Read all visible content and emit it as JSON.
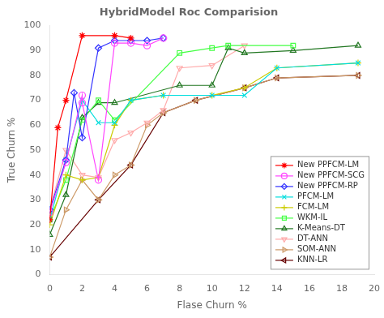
{
  "chart_data": {
    "type": "line",
    "title": "HybridModel Roc Comparision",
    "xlabel": "Flase Churn %",
    "ylabel": "True Churn %",
    "xlim": [
      0,
      20
    ],
    "ylim": [
      0,
      100
    ],
    "xticks": [
      0,
      2,
      4,
      6,
      8,
      10,
      12,
      14,
      16,
      18,
      20
    ],
    "yticks": [
      0,
      10,
      20,
      30,
      40,
      50,
      60,
      70,
      80,
      90,
      100
    ],
    "grid": false,
    "legend": "lower right",
    "series": [
      {
        "name": "New PPFCM-LM",
        "color": "#ff0000",
        "marker": "star",
        "x": [
          0,
          0.5,
          1,
          2,
          4,
          5
        ],
        "values": [
          22,
          59,
          70,
          96,
          96,
          95
        ]
      },
      {
        "name": "New PPFCM-SCG",
        "color": "#ff44ff",
        "marker": "circle",
        "x": [
          0,
          1,
          2,
          2,
          3,
          4,
          5,
          6,
          7
        ],
        "values": [
          25,
          45,
          72,
          69,
          38,
          93,
          93,
          92,
          95
        ]
      },
      {
        "name": "New PPFCM-RP",
        "color": "#3333ff",
        "marker": "diamond",
        "x": [
          0,
          1,
          1.5,
          2,
          3,
          4,
          5,
          6,
          7
        ],
        "values": [
          26,
          46,
          73,
          55,
          91,
          94,
          94,
          94,
          95
        ]
      },
      {
        "name": "PFCM-LM",
        "color": "#00dddd",
        "marker": "x",
        "x": [
          0,
          1,
          2,
          3,
          4,
          5,
          7,
          10,
          12,
          14,
          19
        ],
        "values": [
          22,
          46,
          70,
          61,
          61,
          70,
          72,
          72,
          72,
          83,
          85
        ]
      },
      {
        "name": "FCM-LM",
        "color": "#cccc00",
        "marker": "plus",
        "x": [
          0,
          1,
          2,
          3,
          4,
          5,
          7,
          10,
          12,
          14,
          19
        ],
        "values": [
          20,
          40,
          38,
          39,
          60,
          70,
          72,
          72,
          75,
          83,
          85
        ]
      },
      {
        "name": "WKM-IL",
        "color": "#44ff44",
        "marker": "square",
        "x": [
          0,
          1,
          2,
          3,
          4,
          8,
          10,
          11,
          15
        ],
        "values": [
          22,
          38,
          62,
          70,
          62,
          89,
          91,
          92,
          92
        ]
      },
      {
        "name": "K-Means-DT",
        "color": "#227722",
        "marker": "triangle-up",
        "x": [
          0,
          1,
          2,
          3,
          4,
          8,
          10,
          11,
          12,
          15,
          19
        ],
        "values": [
          16,
          32,
          63,
          69,
          69,
          76,
          76,
          91,
          89,
          90,
          92
        ]
      },
      {
        "name": "DT-ANN",
        "color": "#ffaaaa",
        "marker": "triangle-down",
        "x": [
          0,
          1,
          2,
          3,
          4,
          5,
          6,
          7,
          8,
          10,
          12
        ],
        "values": [
          26,
          50,
          40,
          39,
          54,
          57,
          61,
          66,
          83,
          84,
          92
        ]
      },
      {
        "name": "SOM-ANN",
        "color": "#cc9966",
        "marker": "triangle-right",
        "x": [
          0,
          1,
          2,
          3,
          4,
          5,
          6,
          7,
          9,
          12,
          14,
          19
        ],
        "values": [
          7,
          26,
          38,
          30,
          40,
          44,
          60,
          65,
          70,
          75,
          79,
          80
        ]
      },
      {
        "name": "KNN-LR",
        "color": "#660000",
        "marker": "triangle-left",
        "x": [
          0,
          3,
          5,
          7,
          9,
          12,
          14,
          19
        ],
        "values": [
          7,
          30,
          44,
          65,
          70,
          75,
          79,
          80
        ]
      }
    ]
  }
}
